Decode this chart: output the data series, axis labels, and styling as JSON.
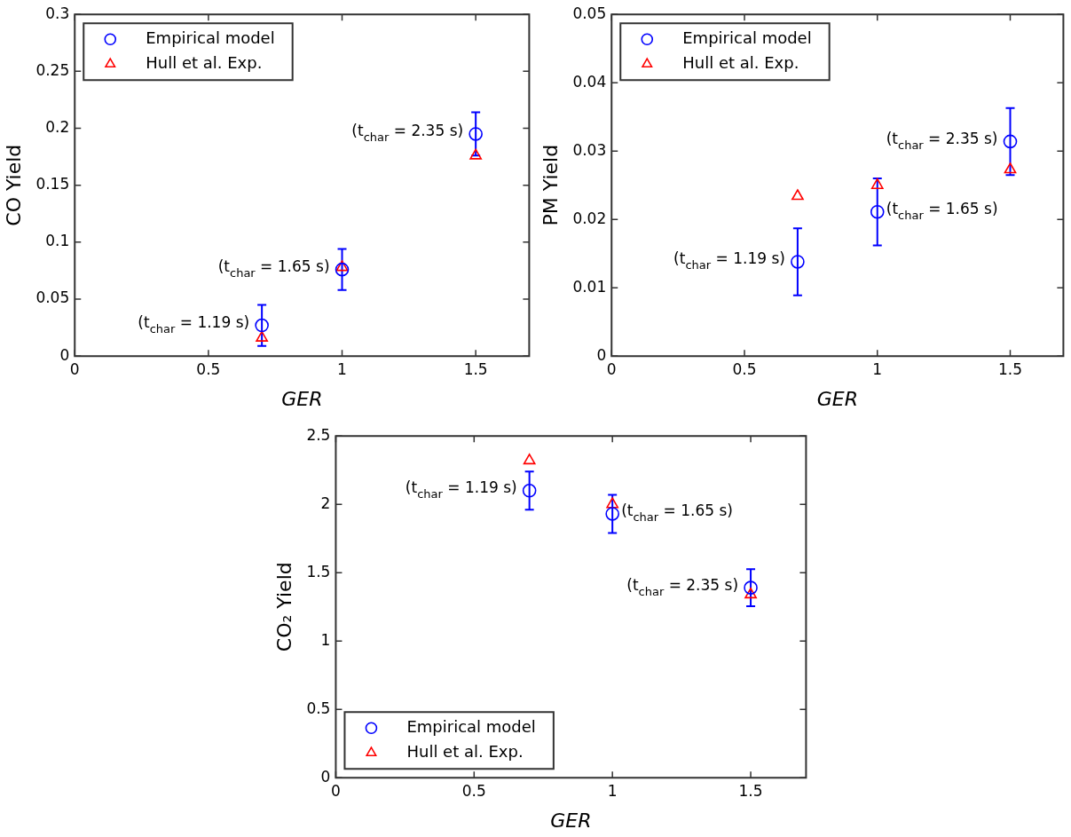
{
  "chart_data": [
    {
      "type": "scatter",
      "xlabel": "GER",
      "ylabel": "CO Yield",
      "xlim": [
        0,
        1.7
      ],
      "xticks": [
        0,
        0.5,
        1,
        1.5
      ],
      "ylim": [
        0,
        0.3
      ],
      "yticks": [
        0,
        0.05,
        0.1,
        0.15,
        0.2,
        0.25,
        0.3
      ],
      "legend": "top left",
      "series": [
        {
          "name": "Empirical model",
          "color": "#0000ff",
          "marker": "circle",
          "x": [
            0.7,
            1,
            1.5
          ],
          "values": [
            0.027,
            0.076,
            0.195
          ],
          "errors": [
            0.018,
            0.018,
            0.019
          ]
        },
        {
          "name": "Hull et al. Exp.",
          "color": "#ff0000",
          "marker": "triangle",
          "x": [
            0.7,
            1,
            1.5
          ],
          "values": [
            0.016,
            0.078,
            0.176
          ]
        }
      ],
      "annotations": [
        {
          "text": "(t$_{char}$ = 1.19 s)",
          "x": 0.7,
          "y": 0.027
        },
        {
          "text": "(t$_{char}$ = 1.65 s)",
          "x": 1,
          "y": 0.076
        },
        {
          "text": "(t$_{char}$ = 2.35 s)",
          "x": 1.5,
          "y": 0.195
        }
      ]
    },
    {
      "type": "scatter",
      "xlabel": "GER",
      "ylabel": "PM Yield",
      "xlim": [
        0,
        1.7
      ],
      "xticks": [
        0,
        0.5,
        1,
        1.5
      ],
      "ylim": [
        0,
        0.05
      ],
      "yticks": [
        0,
        0.01,
        0.02,
        0.03,
        0.04,
        0.05
      ],
      "legend": "top left",
      "series": [
        {
          "name": "Empirical model",
          "color": "#0000ff",
          "marker": "circle",
          "x": [
            0.7,
            1,
            1.5
          ],
          "values": [
            0.0138,
            0.0211,
            0.0314
          ],
          "errors": [
            0.0049,
            0.0049,
            0.0049
          ]
        },
        {
          "name": "Hull et al. Exp.",
          "color": "#ff0000",
          "marker": "triangle",
          "x": [
            0.7,
            1,
            1.5
          ],
          "values": [
            0.0234,
            0.025,
            0.0273
          ]
        }
      ],
      "annotations": [
        {
          "text": "(t$_{char}$ = 1.19 s)",
          "x": 0.7,
          "y": 0.0138
        },
        {
          "text": "(t$_{char}$ = 1.65 s)",
          "x": 1,
          "y": 0.0211
        },
        {
          "text": "(t$_{char}$ = 2.35 s)",
          "x": 1.5,
          "y": 0.0314
        }
      ]
    },
    {
      "type": "scatter",
      "xlabel": "GER",
      "ylabel": "CO₂ Yield",
      "xlim": [
        0,
        1.7
      ],
      "xticks": [
        0,
        0.5,
        1,
        1.5
      ],
      "ylim": [
        0,
        2.5
      ],
      "yticks": [
        0,
        0.5,
        1,
        1.5,
        2,
        2.5
      ],
      "legend": "bottom left",
      "series": [
        {
          "name": "Empirical model",
          "color": "#0000ff",
          "marker": "circle",
          "x": [
            0.7,
            1,
            1.5
          ],
          "values": [
            2.1,
            1.93,
            1.39
          ],
          "errors": [
            0.14,
            0.14,
            0.135
          ]
        },
        {
          "name": "Hull et al. Exp.",
          "color": "#ff0000",
          "marker": "triangle",
          "x": [
            0.7,
            1,
            1.5
          ],
          "values": [
            2.32,
            2.0,
            1.34
          ]
        }
      ],
      "annotations": [
        {
          "text": "(t$_{char}$ = 1.19 s)",
          "x": 0.7,
          "y": 2.1
        },
        {
          "text": "(t$_{char}$ = 1.65 s)",
          "x": 1,
          "y": 1.93
        },
        {
          "text": "(t$_{char}$ = 2.35 s)",
          "x": 1.5,
          "y": 1.39
        }
      ]
    }
  ]
}
